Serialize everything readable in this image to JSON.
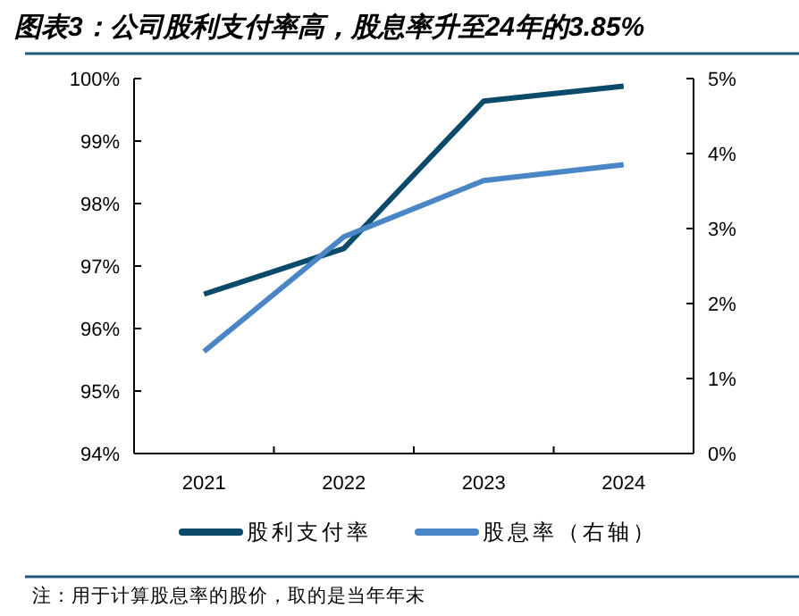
{
  "chart_data": {
    "type": "line",
    "title": "图表3：公司股利支付率高，股息率升至24年的3.85%",
    "categories": [
      "2021",
      "2022",
      "2023",
      "2024"
    ],
    "series": [
      {
        "name": "股利支付率",
        "color": "#0b4a6b",
        "values": [
          96.55,
          97.28,
          99.64,
          99.88
        ]
      },
      {
        "name": "股息率（右轴）",
        "color": "#4a86c5",
        "axis": "y2",
        "values": [
          1.36,
          2.89,
          3.64,
          3.85
        ]
      }
    ],
    "ylim": [
      94,
      100
    ],
    "yticks": [
      {
        "value": 94,
        "label": "94%"
      },
      {
        "value": 95,
        "label": "95%"
      },
      {
        "value": 96,
        "label": "96%"
      },
      {
        "value": 97,
        "label": "97%"
      },
      {
        "value": 98,
        "label": "98%"
      },
      {
        "value": 99,
        "label": "99%"
      },
      {
        "value": 100,
        "label": "100%"
      }
    ],
    "y2lim": [
      0,
      5
    ],
    "y2ticks": [
      {
        "value": 0,
        "label": "0%"
      },
      {
        "value": 1,
        "label": "1%"
      },
      {
        "value": 2,
        "label": "2%"
      },
      {
        "value": 3,
        "label": "3%"
      },
      {
        "value": 4,
        "label": "4%"
      },
      {
        "value": 5,
        "label": "5%"
      }
    ],
    "grid": false,
    "legend": "bottom",
    "marker": "none",
    "line_style": "solid",
    "annotations": [
      "注：用于计算股息率的股价，取的是当年年末"
    ]
  }
}
